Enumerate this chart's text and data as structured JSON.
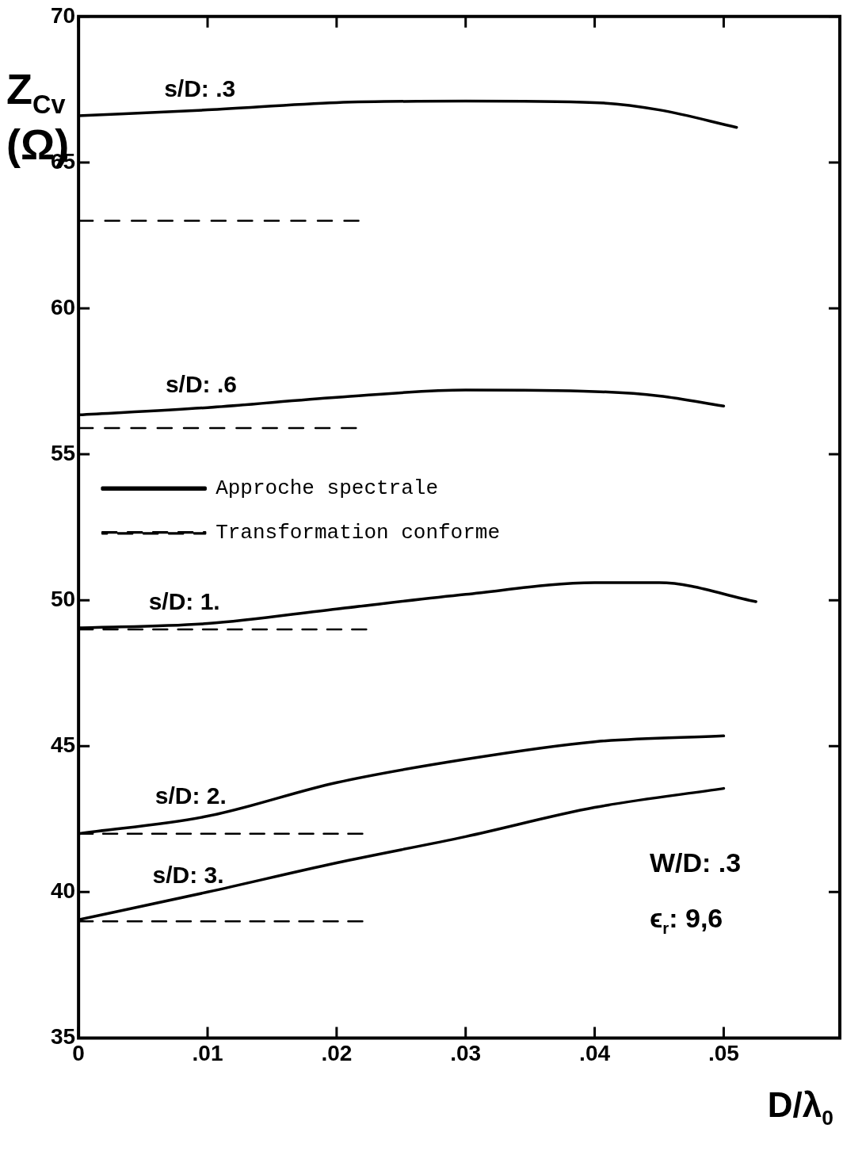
{
  "chart_data": {
    "type": "line",
    "xlabel": "D/λ$_{0}$",
    "ylabel": "Z$_{Cv}$ (Ω)",
    "xlim": [
      0,
      0.059
    ],
    "ylim": [
      35,
      70
    ],
    "xticks": [
      0,
      {
        "value": 0.01,
        "label": ".01"
      },
      {
        "value": 0.02,
        "label": ".02"
      },
      {
        "value": 0.03,
        "label": ".03"
      },
      {
        "value": 0.04,
        "label": ".04"
      },
      {
        "value": 0.05,
        "label": ".05"
      }
    ],
    "yticks": [
      35,
      40,
      45,
      50,
      55,
      60,
      65,
      70
    ],
    "grid": false,
    "legend": "top",
    "marker": "none",
    "series": [
      {
        "name": "Approche spectrale",
        "color": "#000000",
        "line_style": "solid",
        "x": [
          0,
          0.01,
          0.02,
          0.03,
          0.04,
          0.045,
          0.051
        ],
        "values": [
          66.6,
          66.8,
          67.05,
          67.1,
          67.05,
          66.8,
          66.2
        ]
      },
      {
        "name": "Transformation conforme",
        "color": "#000000",
        "line_style": "dashed",
        "x": [
          0,
          0.0217
        ],
        "values": [
          63.0,
          63.0
        ]
      },
      {
        "color": "#000000",
        "line_style": "solid",
        "x": [
          0,
          0.01,
          0.02,
          0.03,
          0.04,
          0.045,
          0.05
        ],
        "values": [
          56.35,
          56.6,
          56.95,
          57.2,
          57.15,
          57.0,
          56.65
        ]
      },
      {
        "color": "#000000",
        "line_style": "dashed",
        "x": [
          0,
          0.0215
        ],
        "values": [
          55.9,
          55.9
        ]
      },
      {
        "color": "#000000",
        "line_style": "solid",
        "x": [
          0,
          0.01,
          0.02,
          0.03,
          0.04,
          0.045,
          0.0525
        ],
        "values": [
          49.05,
          49.2,
          49.7,
          50.2,
          50.6,
          50.6,
          49.95
        ]
      },
      {
        "color": "#000000",
        "line_style": "dashed",
        "x": [
          0,
          0.0223
        ],
        "values": [
          49.0,
          49.0
        ]
      },
      {
        "color": "#000000",
        "line_style": "solid",
        "x": [
          0,
          0.01,
          0.02,
          0.03,
          0.04,
          0.05
        ],
        "values": [
          42.0,
          42.6,
          43.75,
          44.55,
          45.15,
          45.35
        ]
      },
      {
        "color": "#000000",
        "line_style": "dashed",
        "x": [
          0,
          0.022
        ],
        "values": [
          42.0,
          42.0
        ]
      },
      {
        "color": "#000000",
        "line_style": "solid",
        "x": [
          0,
          0.01,
          0.02,
          0.03,
          0.04,
          0.05
        ],
        "values": [
          39.05,
          40.0,
          41.0,
          41.9,
          42.9,
          43.55
        ]
      },
      {
        "color": "#000000",
        "line_style": "dashed",
        "x": [
          0,
          0.022
        ],
        "values": [
          39.0,
          39.0
        ]
      }
    ],
    "annotations": [
      {
        "text": "s/D: .3",
        "x": 0.0094,
        "y": 66.75
      },
      {
        "text": "s/D: .6",
        "x": 0.0095,
        "y": 56.6
      },
      {
        "text": "s/D: 1.",
        "x": 0.0082,
        "y": 49.15
      },
      {
        "text": "s/D: 2.",
        "x": 0.0087,
        "y": 42.5
      },
      {
        "text": "s/D: 3.",
        "x": 0.0085,
        "y": 39.8
      },
      "W/D: .3",
      "ϵ$_{r}$: 9,6"
    ]
  }
}
